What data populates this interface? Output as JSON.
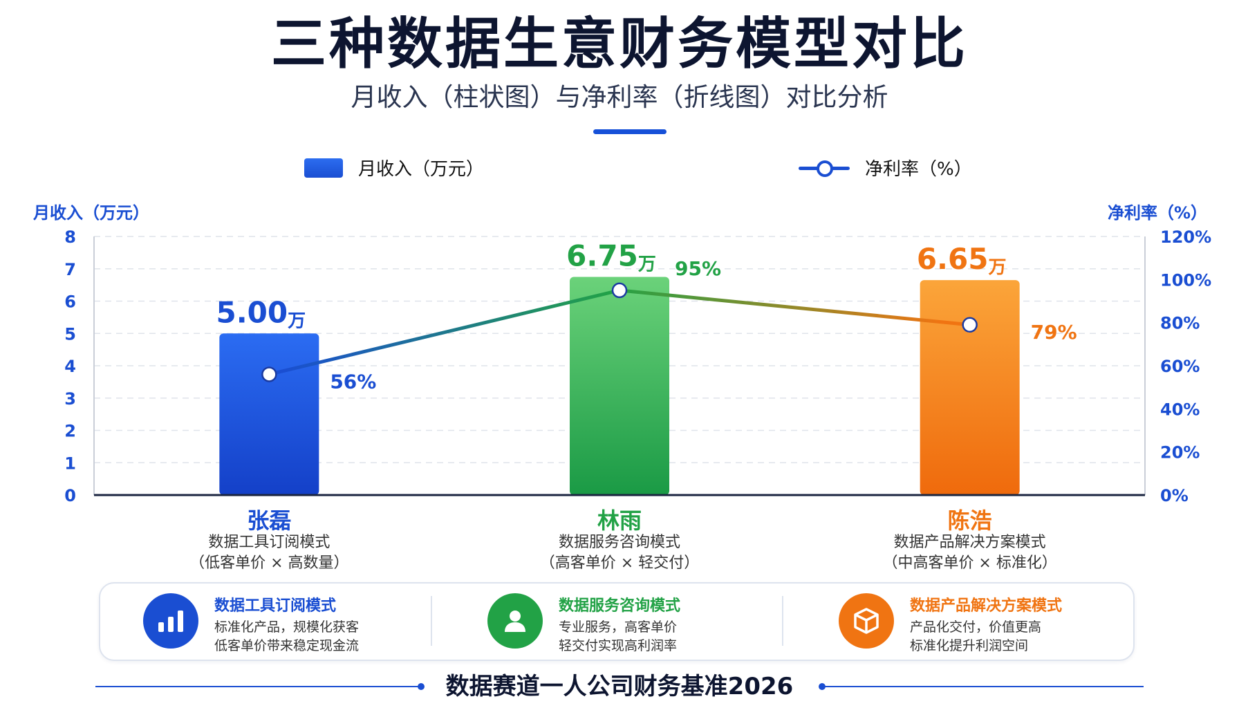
{
  "header": {
    "title": "三种数据生意财务模型对比",
    "subtitle": "月收入（柱状图）与净利率（折线图）对比分析"
  },
  "legend": {
    "bar_label": "月收入（万元）",
    "line_label": "净利率（%）"
  },
  "chart_data": {
    "type": "bar+line",
    "categories": [
      "张磊",
      "林雨",
      "陈浩"
    ],
    "series": [
      {
        "name": "月收入（万元）",
        "type": "bar",
        "axis": "left",
        "values": [
          5.0,
          6.75,
          6.65
        ],
        "labels": [
          "5.00",
          "6.75",
          "6.65"
        ],
        "label_unit": "万",
        "colors": [
          "#1a4ed2",
          "#22a246",
          "#f07412"
        ]
      },
      {
        "name": "净利率（%）",
        "type": "line",
        "axis": "right",
        "values": [
          56,
          95,
          79
        ],
        "labels": [
          "56%",
          "95%",
          "79%"
        ]
      }
    ],
    "y_left": {
      "label": "月收入（万元）",
      "range": [
        0,
        8
      ],
      "ticks": [
        "0",
        "1",
        "2",
        "3",
        "4",
        "5",
        "6",
        "7",
        "8"
      ]
    },
    "y_right": {
      "label": "净利率（%）",
      "range": [
        0,
        120
      ],
      "ticks": [
        "0%",
        "20%",
        "40%",
        "60%",
        "80%",
        "100%",
        "120%"
      ]
    },
    "grid": true,
    "legend_position": "top-center"
  },
  "categories_info": [
    {
      "name": "张磊",
      "desc1": "数据工具订阅模式",
      "desc2": "（低客单价 × 高数量）",
      "color": "#1a4ed2"
    },
    {
      "name": "林雨",
      "desc1": "数据服务咨询模式",
      "desc2": "（高客单价 × 轻交付）",
      "color": "#22a246"
    },
    {
      "name": "陈浩",
      "desc1": "数据产品解决方案模式",
      "desc2": "（中高客单价 × 标准化）",
      "color": "#f07412"
    }
  ],
  "info_cards": [
    {
      "icon": "bar-chart-icon",
      "title": "数据工具订阅模式",
      "line1": "标准化产品，规模化获客",
      "line2": "低客单价带来稳定现金流",
      "color": "#1a4ed2"
    },
    {
      "icon": "user-icon",
      "title": "数据服务咨询模式",
      "line1": "专业服务，高客单价",
      "line2": "轻交付实现高利润率",
      "color": "#22a246"
    },
    {
      "icon": "cube-icon",
      "title": "数据产品解决方案模式",
      "line1": "产品化交付，价值更高",
      "line2": "标准化提升利润空间",
      "color": "#f07412"
    }
  ],
  "footer": {
    "text": "数据赛道一人公司财务基准2026"
  }
}
